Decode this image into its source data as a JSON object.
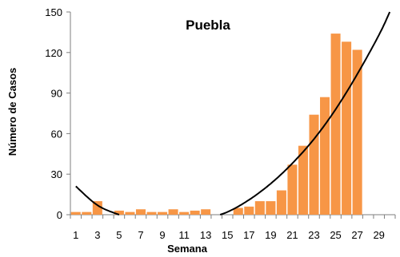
{
  "chart_data": {
    "type": "bar",
    "title": "Puebla",
    "xlabel": "Semana",
    "ylabel": "Número de Casos",
    "ylim": [
      0,
      150
    ],
    "yticks": [
      0,
      30,
      60,
      90,
      120,
      150
    ],
    "x": [
      1,
      2,
      3,
      4,
      5,
      6,
      7,
      8,
      9,
      10,
      11,
      12,
      13,
      14,
      15,
      16,
      17,
      18,
      19,
      20,
      21,
      22,
      23,
      24,
      25,
      26,
      27
    ],
    "values": [
      2,
      2,
      10,
      0,
      3,
      2,
      4,
      2,
      2,
      4,
      2,
      3,
      4,
      0,
      0,
      5,
      6,
      10,
      10,
      18,
      37,
      51,
      74,
      87,
      134,
      128,
      122
    ],
    "xlim": [
      1,
      30
    ],
    "xtick_labels": [
      "1",
      "3",
      "5",
      "7",
      "9",
      "11",
      "13",
      "15",
      "17",
      "19",
      "21",
      "23",
      "25",
      "27",
      "29"
    ],
    "grid": false,
    "trendline": {
      "type": "polynomial",
      "points": [
        [
          1,
          21
        ],
        [
          3,
          7
        ],
        [
          5,
          0
        ],
        [
          7,
          -5
        ],
        [
          9,
          -7
        ],
        [
          11,
          -7
        ],
        [
          13,
          -3
        ],
        [
          15,
          2
        ],
        [
          17,
          11
        ],
        [
          19,
          23
        ],
        [
          21,
          38
        ],
        [
          23,
          56
        ],
        [
          25,
          78
        ],
        [
          27,
          104
        ],
        [
          29,
          133
        ],
        [
          30,
          150
        ]
      ]
    },
    "colors": {
      "bar": "#F79646",
      "axis": "#7f7f7f",
      "trend": "#000000"
    }
  }
}
